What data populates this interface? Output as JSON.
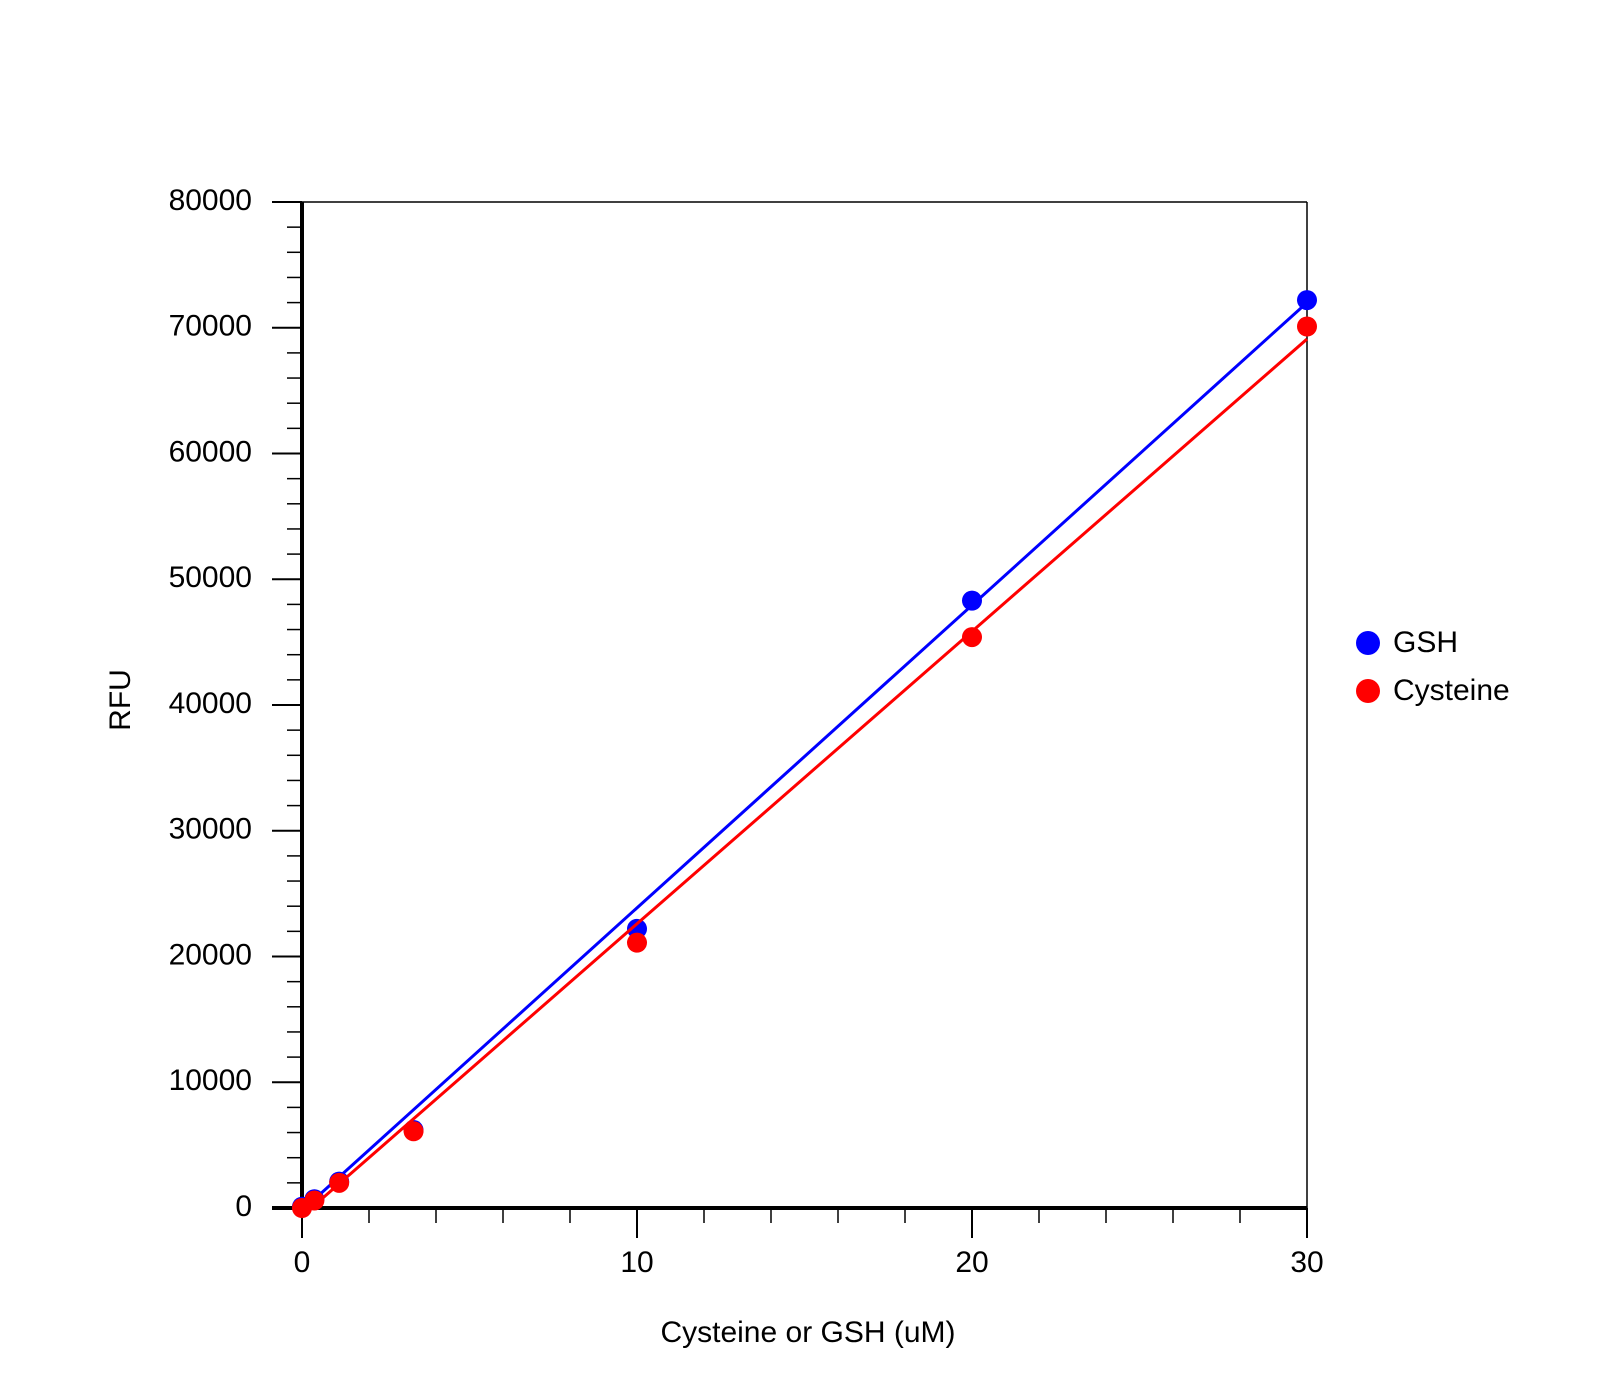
{
  "chart_data": {
    "type": "scatter",
    "x_label": "Cysteine or GSH (uM)",
    "y_label": "RFU",
    "xlim": [
      0,
      30
    ],
    "ylim": [
      0,
      80000
    ],
    "xticks": [
      0,
      10,
      20,
      30
    ],
    "yticks": [
      0,
      10000,
      20000,
      30000,
      40000,
      50000,
      60000,
      70000,
      80000
    ],
    "minor_xticks": [
      2,
      4,
      6,
      8,
      12,
      14,
      16,
      18,
      22,
      24,
      26,
      28
    ],
    "minor_yticks": [
      2000,
      4000,
      6000,
      8000,
      12000,
      14000,
      16000,
      18000,
      22000,
      24000,
      26000,
      28000,
      32000,
      34000,
      36000,
      38000,
      42000,
      44000,
      46000,
      48000,
      52000,
      54000,
      56000,
      58000,
      62000,
      64000,
      66000,
      68000,
      72000,
      74000,
      76000,
      78000
    ],
    "grid": false,
    "legend": "right",
    "series": [
      {
        "name": "GSH",
        "color": "#0000ff",
        "x": [
          0,
          0.37,
          1.11,
          3.33,
          10,
          20,
          30
        ],
        "values": [
          100,
          700,
          2100,
          6200,
          22200,
          48300,
          72200
        ],
        "fit": {
          "x": [
            0,
            30
          ],
          "values": [
            -200,
            72000
          ]
        }
      },
      {
        "name": "Cysteine",
        "color": "#ff0000",
        "x": [
          0,
          0.37,
          1.11,
          3.33,
          10,
          20,
          30
        ],
        "values": [
          0,
          600,
          2000,
          6100,
          21100,
          45400,
          70100
        ],
        "fit": {
          "x": [
            0,
            30
          ],
          "values": [
            -650,
            69100
          ]
        }
      }
    ]
  }
}
